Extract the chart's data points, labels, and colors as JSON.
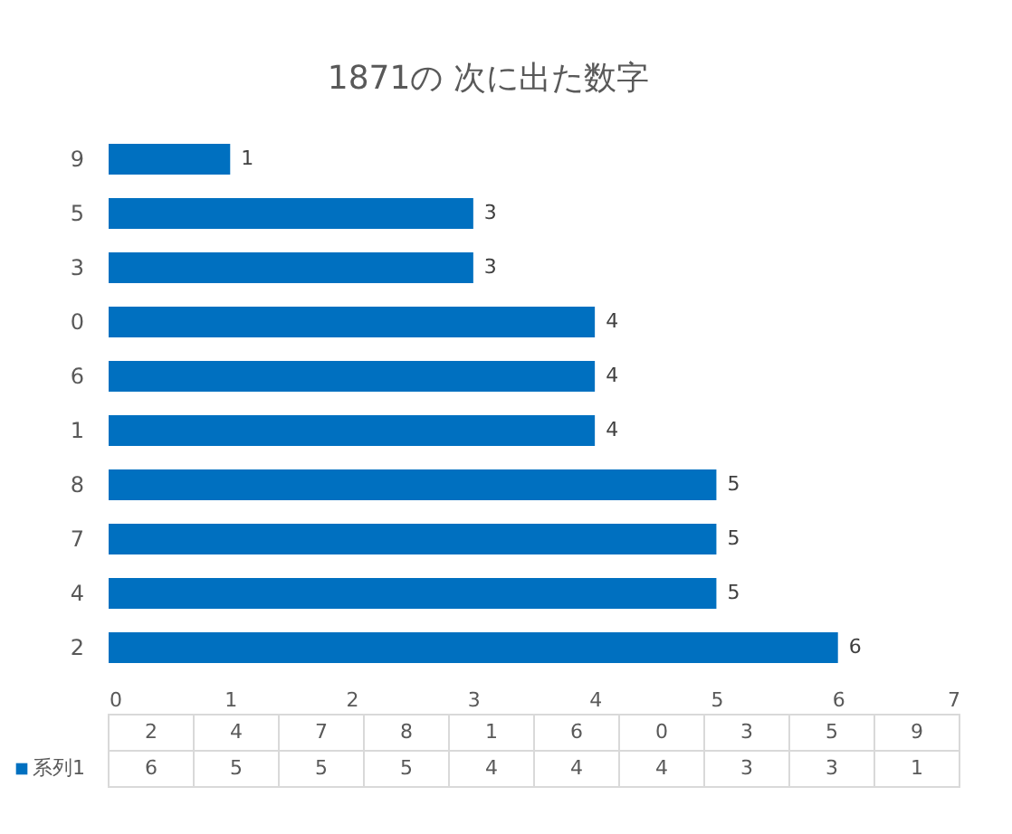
{
  "chart_data": {
    "type": "bar",
    "title": "1871の 次に出た数字",
    "orientation": "horizontal",
    "categories": [
      "9",
      "5",
      "3",
      "0",
      "6",
      "1",
      "8",
      "7",
      "4",
      "2"
    ],
    "series": [
      {
        "name": "系列1",
        "color": "#0070c0",
        "values": [
          1,
          3,
          3,
          4,
          4,
          4,
          5,
          5,
          5,
          6
        ]
      }
    ],
    "xlim": [
      0,
      7
    ],
    "xticks": [
      0,
      1,
      2,
      3,
      4,
      5,
      6,
      7
    ],
    "grid": false,
    "data_labels": true
  }
}
